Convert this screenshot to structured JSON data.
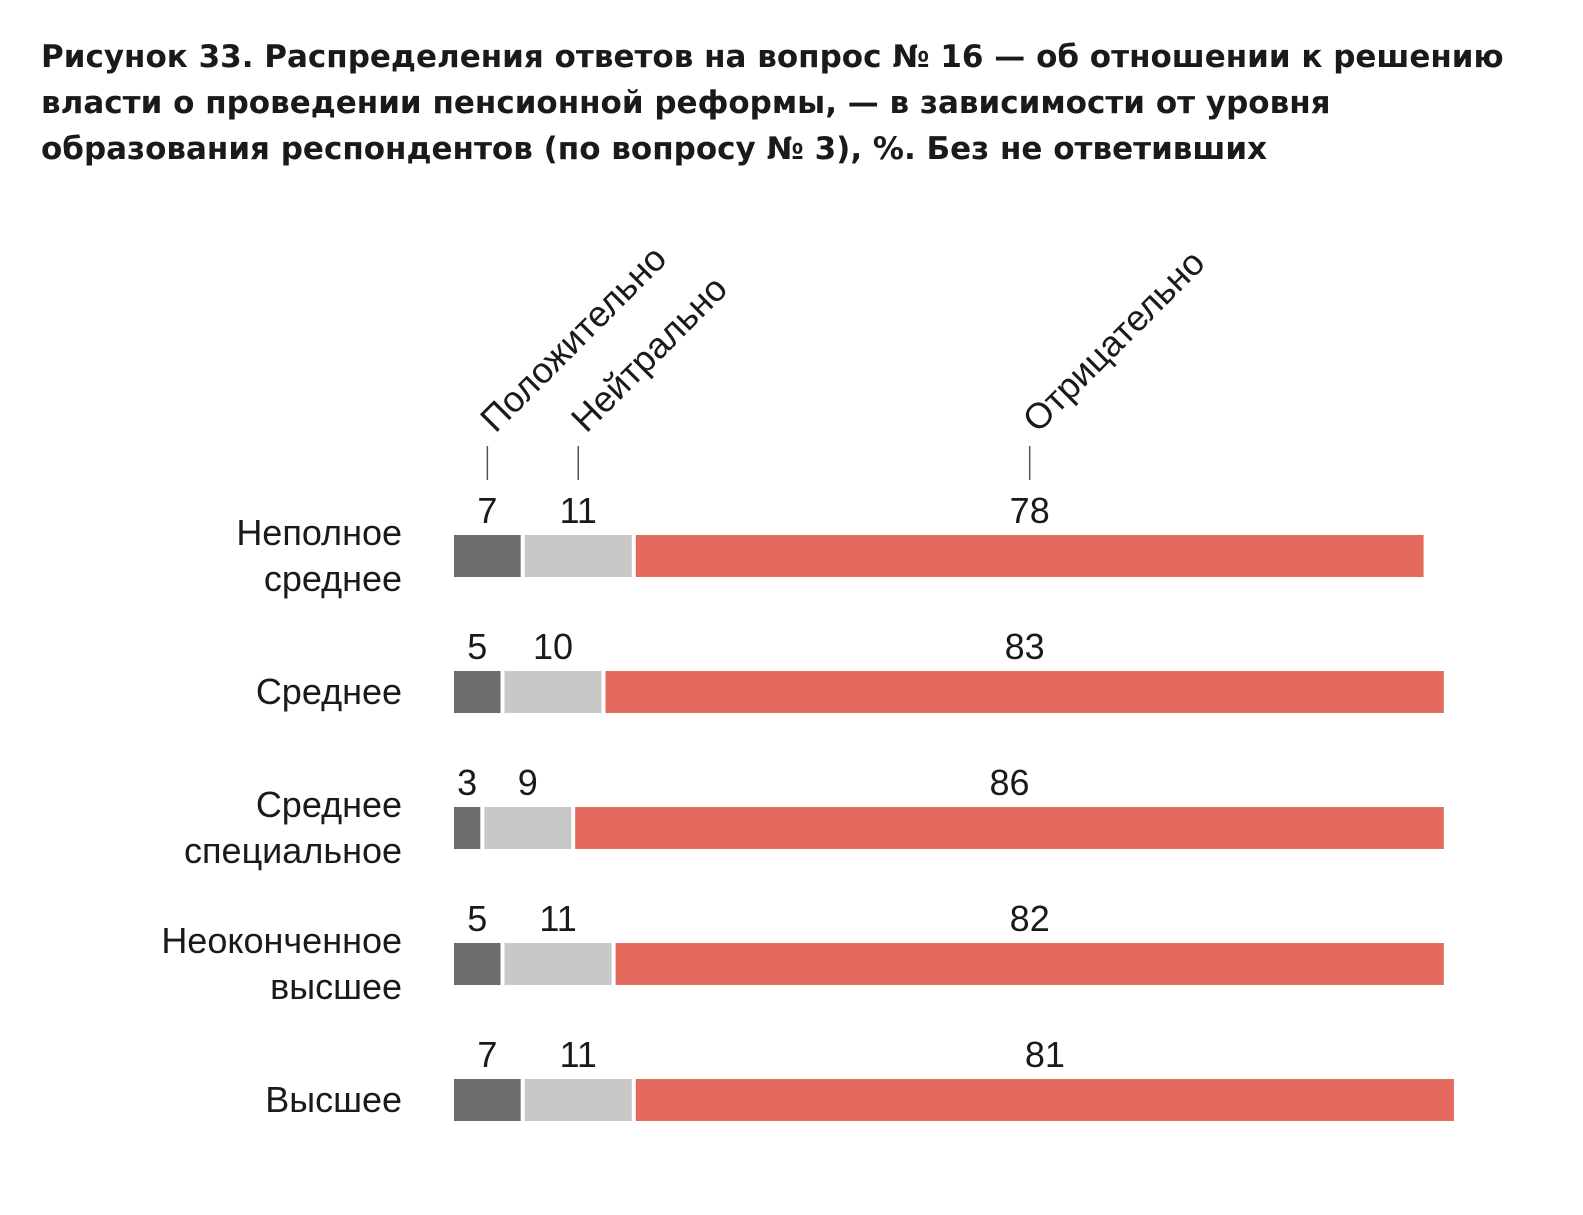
{
  "chart_data": {
    "type": "bar",
    "orientation": "horizontal",
    "stacked": true,
    "title": "Рисунок 33. Распределения ответов на вопрос № 16 — об отношении к решению власти о проведении пенсионной реформы, — в зависимости от уровня образования респондентов (по вопросу № 3), %. Без не ответивших",
    "categories": [
      [
        "Неполное",
        "среднее"
      ],
      [
        "Среднее"
      ],
      [
        "Среднее",
        "специальное"
      ],
      [
        "Неоконченное",
        "высшее"
      ],
      [
        "Высшее"
      ]
    ],
    "series": [
      {
        "name": "Положительно",
        "color": "#6e6e6e",
        "values": [
          7,
          5,
          3,
          5,
          7
        ]
      },
      {
        "name": "Нейтрально",
        "color": "#c8c8c8",
        "values": [
          11,
          10,
          9,
          11,
          11
        ]
      },
      {
        "name": "Отрицательно",
        "color": "#e46a5e",
        "values": [
          78,
          83,
          86,
          82,
          81
        ]
      }
    ],
    "xlim": [
      0,
      100
    ],
    "grid": false,
    "legend_placement": "top, rotated labels above first bar"
  }
}
